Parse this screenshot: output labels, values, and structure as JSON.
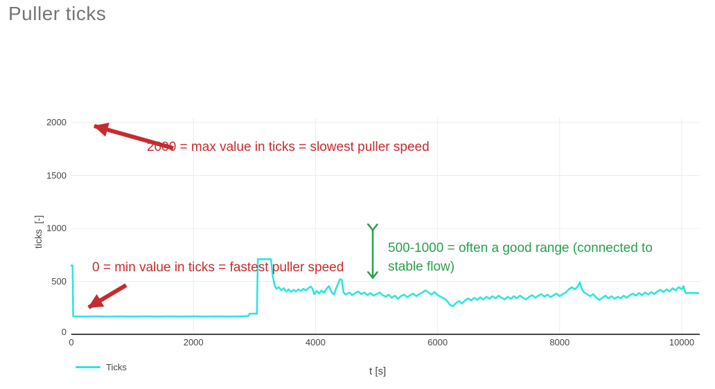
{
  "title": "Puller ticks",
  "colors": {
    "line": "#2ee5e0",
    "annotation_red": "#c62b2e",
    "annotation_green": "#27a04b",
    "axis_text": "#444444",
    "grid": "#ececec",
    "axis_line": "#444444",
    "title_text": "#757575"
  },
  "annotations": {
    "max_text": "2000 = max value in ticks = slowest puller speed",
    "min_text": "0 = min value in ticks = fastest puller speed",
    "range_text": "500-1000 = often a good range (connected to stable flow)"
  },
  "chart_data": {
    "type": "line",
    "title": "Puller ticks",
    "xlabel": "t [s]",
    "ylabel": "ticks  [-]",
    "xlim": [
      0,
      10300
    ],
    "ylim": [
      0,
      2050
    ],
    "x_ticks": [
      0,
      2000,
      4000,
      6000,
      8000,
      10000
    ],
    "y_ticks": [
      0,
      500,
      1000,
      1500,
      2000
    ],
    "grid": true,
    "legend_position": "bottom-left",
    "series": [
      {
        "name": "Ticks",
        "color": "#2ee5e0",
        "points": [
          [
            0,
            650
          ],
          [
            20,
            650
          ],
          [
            30,
            170
          ],
          [
            200,
            168
          ],
          [
            400,
            170
          ],
          [
            600,
            167
          ],
          [
            800,
            170
          ],
          [
            1000,
            168
          ],
          [
            1200,
            170
          ],
          [
            1400,
            168
          ],
          [
            1600,
            170
          ],
          [
            1800,
            168
          ],
          [
            2000,
            170
          ],
          [
            2200,
            168
          ],
          [
            2400,
            170
          ],
          [
            2600,
            168
          ],
          [
            2800,
            170
          ],
          [
            2900,
            172
          ],
          [
            2920,
            195
          ],
          [
            3040,
            195
          ],
          [
            3055,
            710
          ],
          [
            3270,
            710
          ],
          [
            3300,
            550
          ],
          [
            3330,
            460
          ],
          [
            3360,
            430
          ],
          [
            3400,
            445
          ],
          [
            3440,
            415
          ],
          [
            3480,
            435
          ],
          [
            3520,
            405
          ],
          [
            3560,
            425
          ],
          [
            3600,
            400
          ],
          [
            3640,
            420
          ],
          [
            3680,
            405
          ],
          [
            3720,
            425
          ],
          [
            3760,
            410
          ],
          [
            3800,
            430
          ],
          [
            3840,
            415
          ],
          [
            3880,
            435
          ],
          [
            3920,
            450
          ],
          [
            3950,
            430
          ],
          [
            3980,
            380
          ],
          [
            4020,
            410
          ],
          [
            4060,
            385
          ],
          [
            4100,
            415
          ],
          [
            4140,
            390
          ],
          [
            4180,
            430
          ],
          [
            4220,
            455
          ],
          [
            4260,
            400
          ],
          [
            4300,
            375
          ],
          [
            4350,
            450
          ],
          [
            4400,
            520
          ],
          [
            4430,
            515
          ],
          [
            4460,
            395
          ],
          [
            4500,
            375
          ],
          [
            4550,
            395
          ],
          [
            4600,
            370
          ],
          [
            4650,
            390
          ],
          [
            4700,
            405
          ],
          [
            4750,
            380
          ],
          [
            4800,
            395
          ],
          [
            4850,
            370
          ],
          [
            4900,
            390
          ],
          [
            4950,
            365
          ],
          [
            5000,
            380
          ],
          [
            5050,
            395
          ],
          [
            5100,
            370
          ],
          [
            5150,
            355
          ],
          [
            5200,
            375
          ],
          [
            5250,
            345
          ],
          [
            5300,
            365
          ],
          [
            5350,
            335
          ],
          [
            5400,
            360
          ],
          [
            5450,
            375
          ],
          [
            5500,
            350
          ],
          [
            5550,
            370
          ],
          [
            5600,
            385
          ],
          [
            5650,
            360
          ],
          [
            5700,
            380
          ],
          [
            5750,
            395
          ],
          [
            5800,
            415
          ],
          [
            5850,
            395
          ],
          [
            5900,
            375
          ],
          [
            5950,
            400
          ],
          [
            6000,
            370
          ],
          [
            6050,
            355
          ],
          [
            6100,
            340
          ],
          [
            6150,
            320
          ],
          [
            6200,
            280
          ],
          [
            6250,
            265
          ],
          [
            6300,
            295
          ],
          [
            6350,
            315
          ],
          [
            6400,
            290
          ],
          [
            6450,
            320
          ],
          [
            6500,
            340
          ],
          [
            6550,
            320
          ],
          [
            6600,
            345
          ],
          [
            6650,
            325
          ],
          [
            6700,
            350
          ],
          [
            6750,
            330
          ],
          [
            6800,
            355
          ],
          [
            6850,
            335
          ],
          [
            6900,
            360
          ],
          [
            6950,
            340
          ],
          [
            7000,
            365
          ],
          [
            7050,
            345
          ],
          [
            7100,
            330
          ],
          [
            7150,
            355
          ],
          [
            7200,
            335
          ],
          [
            7250,
            360
          ],
          [
            7300,
            340
          ],
          [
            7350,
            365
          ],
          [
            7400,
            345
          ],
          [
            7450,
            330
          ],
          [
            7500,
            355
          ],
          [
            7550,
            370
          ],
          [
            7600,
            345
          ],
          [
            7650,
            365
          ],
          [
            7700,
            380
          ],
          [
            7750,
            355
          ],
          [
            7800,
            375
          ],
          [
            7850,
            350
          ],
          [
            7900,
            370
          ],
          [
            7950,
            385
          ],
          [
            8000,
            360
          ],
          [
            8050,
            380
          ],
          [
            8100,
            395
          ],
          [
            8150,
            425
          ],
          [
            8200,
            445
          ],
          [
            8250,
            425
          ],
          [
            8300,
            455
          ],
          [
            8330,
            490
          ],
          [
            8360,
            430
          ],
          [
            8400,
            395
          ],
          [
            8450,
            380
          ],
          [
            8500,
            360
          ],
          [
            8550,
            380
          ],
          [
            8600,
            345
          ],
          [
            8650,
            325
          ],
          [
            8700,
            345
          ],
          [
            8750,
            365
          ],
          [
            8800,
            340
          ],
          [
            8850,
            360
          ],
          [
            8900,
            335
          ],
          [
            8950,
            355
          ],
          [
            9000,
            340
          ],
          [
            9050,
            365
          ],
          [
            9100,
            345
          ],
          [
            9150,
            370
          ],
          [
            9200,
            385
          ],
          [
            9250,
            365
          ],
          [
            9300,
            390
          ],
          [
            9350,
            370
          ],
          [
            9400,
            395
          ],
          [
            9450,
            375
          ],
          [
            9500,
            400
          ],
          [
            9550,
            380
          ],
          [
            9600,
            405
          ],
          [
            9650,
            420
          ],
          [
            9700,
            400
          ],
          [
            9750,
            425
          ],
          [
            9800,
            405
          ],
          [
            9850,
            435
          ],
          [
            9900,
            415
          ],
          [
            9950,
            445
          ],
          [
            10000,
            425
          ],
          [
            10030,
            455
          ],
          [
            10060,
            390
          ],
          [
            10270,
            390
          ]
        ]
      }
    ]
  }
}
